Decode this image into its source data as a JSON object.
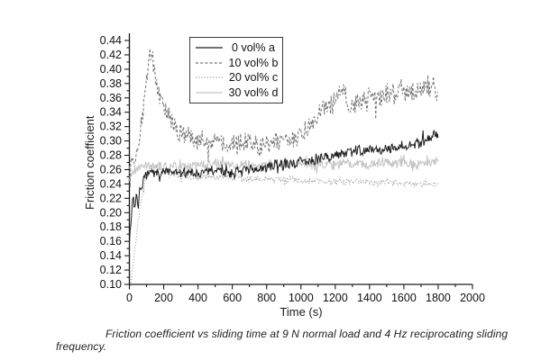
{
  "figure": {
    "caption": "Friction coefficient vs sliding time at 9 N normal load and 4 Hz reciprocating sliding frequency."
  },
  "chart_data": {
    "type": "line",
    "title": "",
    "xlabel": "Time (s)",
    "ylabel": "Friction coefficient",
    "xlim": [
      0,
      2000
    ],
    "ylim": [
      0.1,
      0.44
    ],
    "x_major_step": 200,
    "x_minor_step": 100,
    "y_major_step": 0.02,
    "y_minor_step": 0.01,
    "grid": false,
    "legend_position": "inside-top-center",
    "axis_color": "#1a1a1a",
    "series": [
      {
        "name": "0 vol% a",
        "color": "#1c1c1c",
        "dash": "",
        "noise": 0.0062,
        "seed": 7,
        "keypoints": [
          [
            0,
            0.165
          ],
          [
            10,
            0.19
          ],
          [
            20,
            0.222
          ],
          [
            30,
            0.208
          ],
          [
            40,
            0.224
          ],
          [
            50,
            0.213
          ],
          [
            65,
            0.235
          ],
          [
            85,
            0.246
          ],
          [
            110,
            0.251
          ],
          [
            150,
            0.254
          ],
          [
            200,
            0.258
          ],
          [
            250,
            0.255
          ],
          [
            300,
            0.254
          ],
          [
            350,
            0.257
          ],
          [
            400,
            0.254
          ],
          [
            450,
            0.257
          ],
          [
            500,
            0.259
          ],
          [
            550,
            0.255
          ],
          [
            600,
            0.256
          ],
          [
            650,
            0.258
          ],
          [
            700,
            0.259
          ],
          [
            750,
            0.261
          ],
          [
            800,
            0.263
          ],
          [
            850,
            0.266
          ],
          [
            900,
            0.268
          ],
          [
            950,
            0.269
          ],
          [
            1000,
            0.271
          ],
          [
            1050,
            0.272
          ],
          [
            1100,
            0.275
          ],
          [
            1150,
            0.277
          ],
          [
            1200,
            0.279
          ],
          [
            1250,
            0.282
          ],
          [
            1300,
            0.284
          ],
          [
            1350,
            0.286
          ],
          [
            1400,
            0.288
          ],
          [
            1450,
            0.288
          ],
          [
            1500,
            0.29
          ],
          [
            1550,
            0.292
          ],
          [
            1600,
            0.293
          ],
          [
            1650,
            0.296
          ],
          [
            1700,
            0.299
          ],
          [
            1750,
            0.304
          ],
          [
            1800,
            0.313
          ]
        ]
      },
      {
        "name": "10 vol% b",
        "color": "#757575",
        "dash": "3 2.2",
        "noise": 0.012,
        "seed": 13,
        "keypoints": [
          [
            0,
            0.268
          ],
          [
            20,
            0.274
          ],
          [
            40,
            0.288
          ],
          [
            60,
            0.312
          ],
          [
            80,
            0.342
          ],
          [
            100,
            0.382
          ],
          [
            115,
            0.41
          ],
          [
            125,
            0.42
          ],
          [
            135,
            0.412
          ],
          [
            150,
            0.392
          ],
          [
            165,
            0.372
          ],
          [
            180,
            0.357
          ],
          [
            200,
            0.346
          ],
          [
            220,
            0.34
          ],
          [
            240,
            0.334
          ],
          [
            260,
            0.325
          ],
          [
            280,
            0.318
          ],
          [
            300,
            0.313
          ],
          [
            340,
            0.307
          ],
          [
            380,
            0.304
          ],
          [
            420,
            0.301
          ],
          [
            460,
            0.3
          ],
          [
            500,
            0.3
          ],
          [
            540,
            0.297
          ],
          [
            580,
            0.296
          ],
          [
            620,
            0.297
          ],
          [
            660,
            0.299
          ],
          [
            700,
            0.3
          ],
          [
            740,
            0.297
          ],
          [
            780,
            0.295
          ],
          [
            820,
            0.296
          ],
          [
            860,
            0.298
          ],
          [
            900,
            0.3
          ],
          [
            940,
            0.301
          ],
          [
            980,
            0.303
          ],
          [
            1010,
            0.306
          ],
          [
            1040,
            0.315
          ],
          [
            1070,
            0.326
          ],
          [
            1100,
            0.336
          ],
          [
            1130,
            0.346
          ],
          [
            1160,
            0.352
          ],
          [
            1200,
            0.358
          ],
          [
            1240,
            0.368
          ],
          [
            1280,
            0.356
          ],
          [
            1320,
            0.35
          ],
          [
            1360,
            0.358
          ],
          [
            1400,
            0.365
          ],
          [
            1440,
            0.358
          ],
          [
            1480,
            0.362
          ],
          [
            1520,
            0.366
          ],
          [
            1560,
            0.37
          ],
          [
            1600,
            0.374
          ],
          [
            1640,
            0.362
          ],
          [
            1680,
            0.368
          ],
          [
            1720,
            0.373
          ],
          [
            1760,
            0.37
          ],
          [
            1800,
            0.374
          ]
        ]
      },
      {
        "name": "20 vol% c",
        "color": "#9e9e9e",
        "dash": "1.2 2",
        "noise": 0.0038,
        "seed": 23,
        "keypoints": [
          [
            8,
            0.102
          ],
          [
            20,
            0.125
          ],
          [
            35,
            0.155
          ],
          [
            50,
            0.185
          ],
          [
            65,
            0.212
          ],
          [
            80,
            0.232
          ],
          [
            95,
            0.247
          ],
          [
            110,
            0.256
          ],
          [
            130,
            0.262
          ],
          [
            155,
            0.264
          ],
          [
            185,
            0.261
          ],
          [
            220,
            0.257
          ],
          [
            260,
            0.254
          ],
          [
            300,
            0.252
          ],
          [
            350,
            0.251
          ],
          [
            400,
            0.25
          ],
          [
            450,
            0.25
          ],
          [
            500,
            0.249
          ],
          [
            550,
            0.249
          ],
          [
            600,
            0.248
          ],
          [
            650,
            0.248
          ],
          [
            700,
            0.247
          ],
          [
            750,
            0.247
          ],
          [
            800,
            0.246
          ],
          [
            850,
            0.246
          ],
          [
            900,
            0.245
          ],
          [
            950,
            0.245
          ],
          [
            1000,
            0.245
          ],
          [
            1050,
            0.244
          ],
          [
            1100,
            0.244
          ],
          [
            1150,
            0.244
          ],
          [
            1200,
            0.243
          ],
          [
            1250,
            0.243
          ],
          [
            1300,
            0.243
          ],
          [
            1350,
            0.243
          ],
          [
            1400,
            0.242
          ],
          [
            1450,
            0.242
          ],
          [
            1500,
            0.242
          ],
          [
            1550,
            0.241
          ],
          [
            1600,
            0.241
          ],
          [
            1650,
            0.241
          ],
          [
            1700,
            0.24
          ],
          [
            1750,
            0.24
          ],
          [
            1800,
            0.24
          ]
        ]
      },
      {
        "name": "30 vol% d",
        "color": "#c4c4c4",
        "dash": "",
        "noise": 0.006,
        "seed": 41,
        "keypoints": [
          [
            0,
            0.243
          ],
          [
            15,
            0.252
          ],
          [
            30,
            0.259
          ],
          [
            50,
            0.263
          ],
          [
            80,
            0.265
          ],
          [
            120,
            0.266
          ],
          [
            200,
            0.266
          ],
          [
            300,
            0.265
          ],
          [
            400,
            0.266
          ],
          [
            500,
            0.267
          ],
          [
            600,
            0.266
          ],
          [
            700,
            0.266
          ],
          [
            800,
            0.266
          ],
          [
            900,
            0.267
          ],
          [
            1000,
            0.267
          ],
          [
            1100,
            0.267
          ],
          [
            1200,
            0.268
          ],
          [
            1300,
            0.268
          ],
          [
            1400,
            0.268
          ],
          [
            1500,
            0.269
          ],
          [
            1600,
            0.269
          ],
          [
            1700,
            0.27
          ],
          [
            1800,
            0.271
          ]
        ]
      }
    ]
  }
}
